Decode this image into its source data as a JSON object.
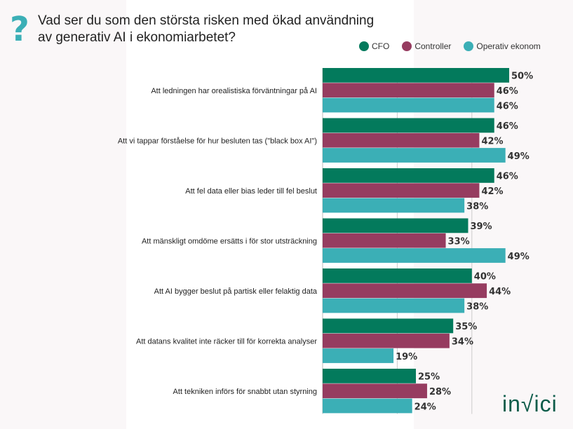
{
  "title": "Vad ser du som den största risken med ökad användning av generativ AI i ekonomiarbetet?",
  "icon": "question-mark-icon",
  "logo": "invici",
  "chart_data": {
    "type": "bar",
    "orientation": "horizontal",
    "categories": [
      "Att ledningen har orealistiska förväntningar på AI",
      "Att vi tappar förståelse för hur besluten tas (\"black box AI\")",
      "Att fel data eller bias leder till fel beslut",
      "Att mänskligt omdöme ersätts i för stor utsträckning",
      "Att AI bygger beslut på partisk eller felaktig data",
      "Att datans kvalitet inte räcker till för korrekta analyser",
      "Att tekniken införs för snabbt utan styrning"
    ],
    "series": [
      {
        "name": "CFO",
        "color": "#037a5c",
        "values": [
          50,
          46,
          46,
          39,
          40,
          35,
          25
        ]
      },
      {
        "name": "Controller",
        "color": "#963c60",
        "values": [
          46,
          42,
          42,
          33,
          44,
          34,
          28
        ]
      },
      {
        "name": "Operativ ekonom",
        "color": "#3bafb6",
        "values": [
          46,
          49,
          38,
          49,
          38,
          19,
          24
        ]
      }
    ],
    "value_suffix": "%",
    "xlim": [
      0,
      50
    ],
    "gridlines": [
      20,
      40
    ],
    "legend": "top-right"
  }
}
